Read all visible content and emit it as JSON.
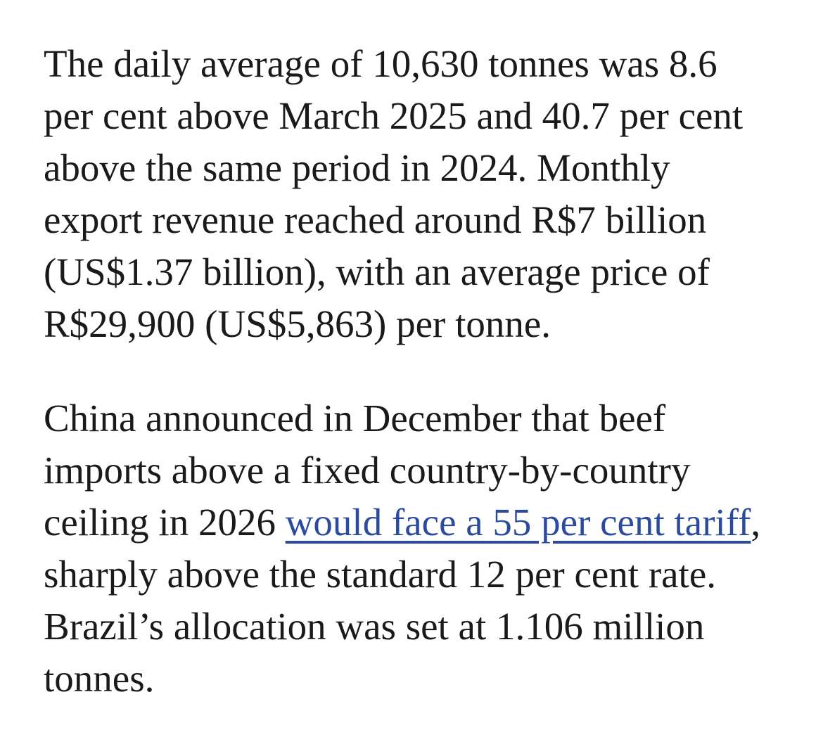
{
  "page": {
    "background_color": "#ffffff",
    "text_color": "#1a1a1a",
    "link_color": "#2a4b9e"
  },
  "article": {
    "paragraph1": {
      "text": "The daily average of 10,630 tonnes was 8.6 per cent above March 2025 and 40.7 per cent above the same period in 2024. Monthly export revenue reached around R$7 billion (US$1.37 billion), with an average price of R$29,900 (US$5,863) per tonne."
    },
    "paragraph2": {
      "before_link": "China announced in December that beef imports above a fixed country-by-country ceiling in 2026 ",
      "link_text": "would face a 55 per cent tariff",
      "after_link": ", sharply above the standard 12 per cent rate. Brazil’s allocation was set at 1.106 million tonnes."
    }
  }
}
